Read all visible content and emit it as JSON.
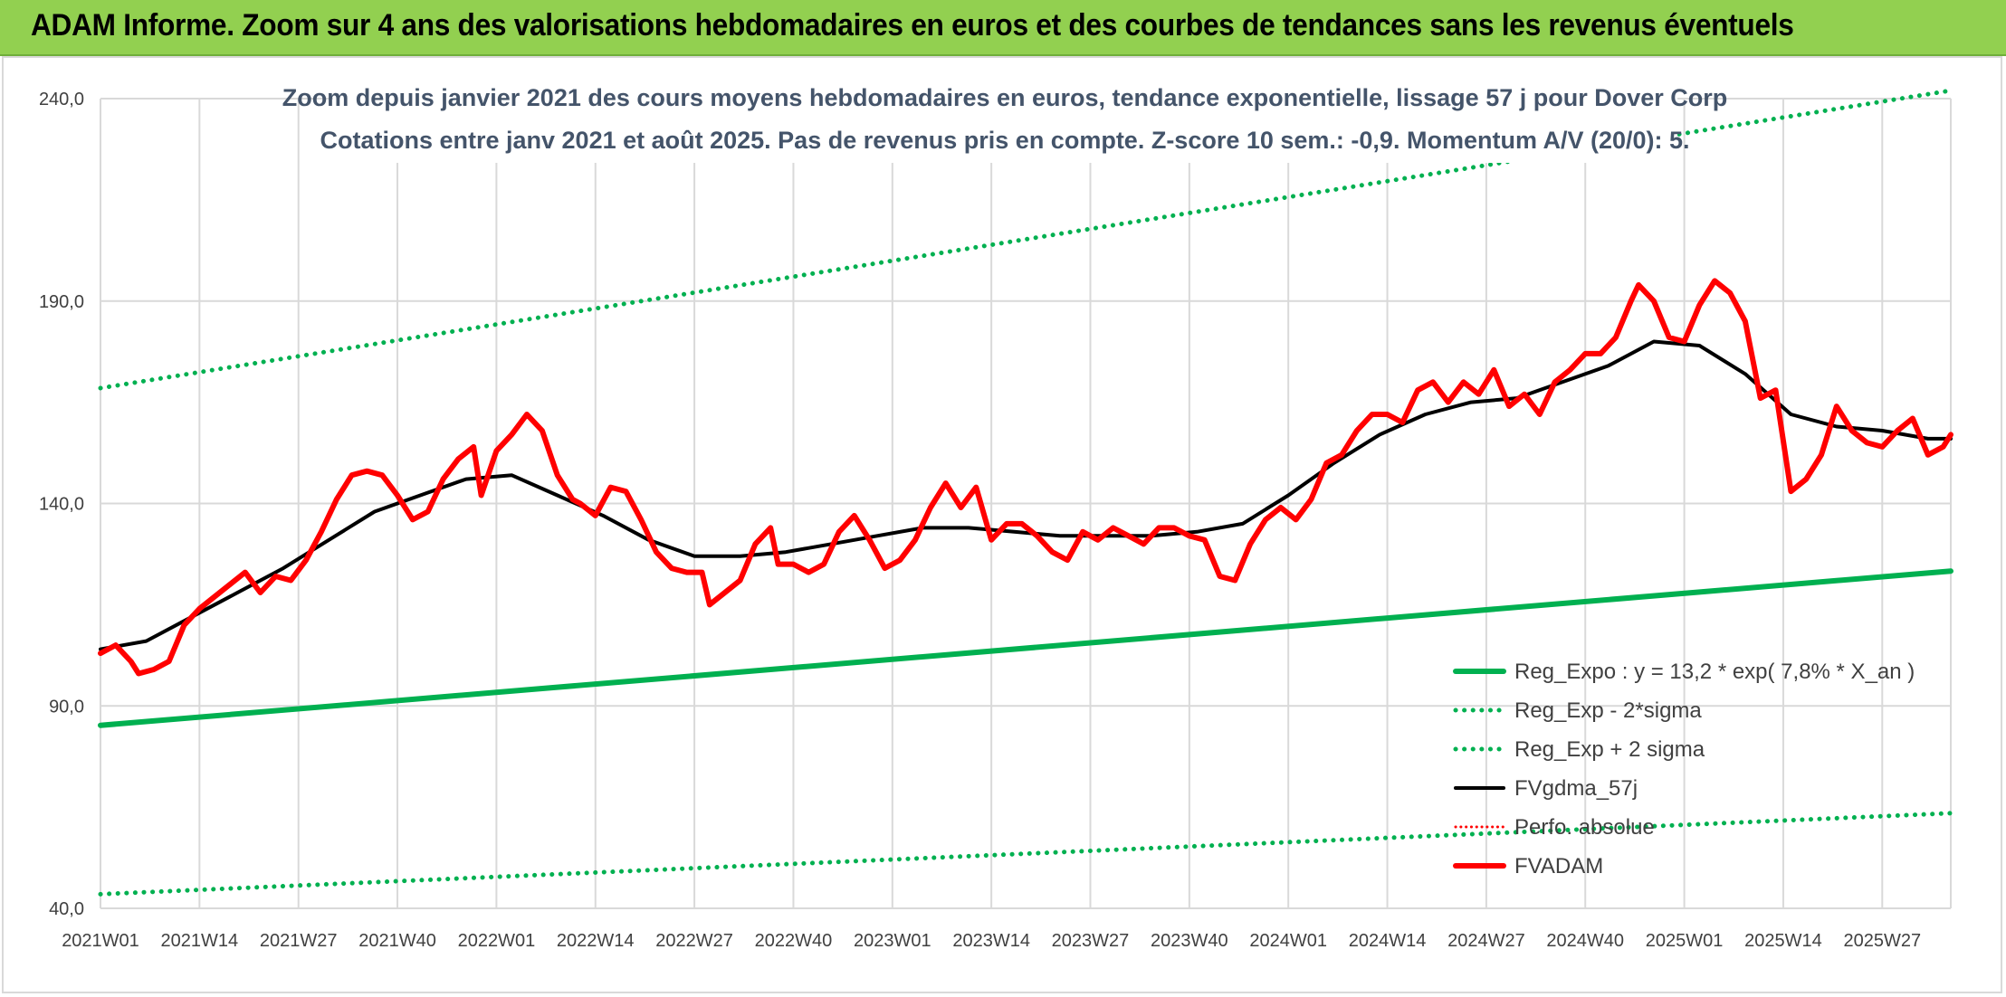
{
  "header": {
    "title": "ADAM Informe. Zoom sur 4 ans des valorisations hebdomadaires en euros et des courbes de tendances sans les revenus éventuels"
  },
  "chart_data": {
    "type": "line",
    "subtitle_lines": [
      "Zoom depuis janvier 2021 des cours moyens hebdomadaires en euros, tendance exponentielle, lissage 57 j pour Dover Corp",
      "Cotations entre janv 2021 et août 2025. Pas de revenus pris en compte. Z-score 10 sem.: -0,9. Momentum A/V (20/0): 5."
    ],
    "ylim": [
      40,
      240
    ],
    "y_ticks": [
      40,
      90,
      140,
      190,
      240
    ],
    "y_tick_labels": [
      "40,0",
      "90,0",
      "140,0",
      "190,0",
      "240,0"
    ],
    "x_tick_labels": [
      "2021W01",
      "2021W14",
      "2021W27",
      "2021W40",
      "2022W01",
      "2022W14",
      "2022W27",
      "2022W40",
      "2023W01",
      "2023W14",
      "2023W27",
      "2023W40",
      "2024W01",
      "2024W14",
      "2024W27",
      "2024W40",
      "2025W01",
      "2025W14",
      "2025W27"
    ],
    "x_tick_index": [
      0,
      13,
      26,
      39,
      52,
      65,
      78,
      91,
      104,
      117,
      130,
      143,
      156,
      169,
      182,
      195,
      208,
      221,
      234
    ],
    "x_count": 244,
    "grid": true,
    "legend_position": "right",
    "series": [
      {
        "name": "Reg_Expo : y = 13,2 * exp( 7,8% *  X_an )",
        "color": "#00b050",
        "style": "solid",
        "width": 6,
        "kind": "line",
        "start": 85.2,
        "end": 123.3
      },
      {
        "name": "Reg_Exp - 2*sigma",
        "color": "#00b050",
        "style": "dotted",
        "width": 5,
        "kind": "line",
        "start": 43.5,
        "end": 63.5
      },
      {
        "name": "Reg_Exp + 2 sigma",
        "color": "#00b050",
        "style": "dotted",
        "width": 5,
        "kind": "line",
        "start": 168.5,
        "end": 242.0
      },
      {
        "name": "FVgdma_57j",
        "color": "#000000",
        "style": "solid",
        "width": 4,
        "kind": "points",
        "points": [
          [
            0,
            104
          ],
          [
            6,
            106
          ],
          [
            12,
            112
          ],
          [
            18,
            118
          ],
          [
            24,
            124
          ],
          [
            30,
            131
          ],
          [
            36,
            138
          ],
          [
            42,
            142
          ],
          [
            48,
            146
          ],
          [
            54,
            147
          ],
          [
            60,
            142
          ],
          [
            66,
            137
          ],
          [
            72,
            131
          ],
          [
            78,
            127
          ],
          [
            84,
            127
          ],
          [
            90,
            128
          ],
          [
            96,
            130
          ],
          [
            102,
            132
          ],
          [
            108,
            134
          ],
          [
            114,
            134
          ],
          [
            120,
            133
          ],
          [
            126,
            132
          ],
          [
            132,
            132
          ],
          [
            138,
            132
          ],
          [
            144,
            133
          ],
          [
            150,
            135
          ],
          [
            156,
            142
          ],
          [
            162,
            150
          ],
          [
            168,
            157
          ],
          [
            174,
            162
          ],
          [
            180,
            165
          ],
          [
            186,
            166
          ],
          [
            192,
            170
          ],
          [
            198,
            174
          ],
          [
            204,
            180
          ],
          [
            210,
            179
          ],
          [
            216,
            172
          ],
          [
            222,
            162
          ],
          [
            228,
            159
          ],
          [
            234,
            158
          ],
          [
            240,
            156
          ],
          [
            243,
            156
          ]
        ]
      },
      {
        "name": "Perfo. absolue",
        "color": "#ff0000",
        "style": "dotted",
        "width": 3,
        "kind": "none"
      },
      {
        "name": "FVADAM",
        "color": "#ff0000",
        "style": "solid",
        "width": 6,
        "kind": "points",
        "points": [
          [
            0,
            103
          ],
          [
            2,
            105
          ],
          [
            4,
            101
          ],
          [
            5,
            98
          ],
          [
            7,
            99
          ],
          [
            9,
            101
          ],
          [
            11,
            110
          ],
          [
            13,
            114
          ],
          [
            15,
            117
          ],
          [
            17,
            120
          ],
          [
            19,
            123
          ],
          [
            21,
            118
          ],
          [
            23,
            122
          ],
          [
            25,
            121
          ],
          [
            27,
            126
          ],
          [
            29,
            133
          ],
          [
            31,
            141
          ],
          [
            33,
            147
          ],
          [
            35,
            148
          ],
          [
            37,
            147
          ],
          [
            39,
            142
          ],
          [
            41,
            136
          ],
          [
            43,
            138
          ],
          [
            45,
            146
          ],
          [
            47,
            151
          ],
          [
            49,
            154
          ],
          [
            50,
            142
          ],
          [
            52,
            153
          ],
          [
            54,
            157
          ],
          [
            56,
            162
          ],
          [
            58,
            158
          ],
          [
            60,
            147
          ],
          [
            62,
            141
          ],
          [
            63,
            140
          ],
          [
            65,
            137
          ],
          [
            67,
            144
          ],
          [
            69,
            143
          ],
          [
            71,
            136
          ],
          [
            73,
            128
          ],
          [
            75,
            124
          ],
          [
            77,
            123
          ],
          [
            79,
            123
          ],
          [
            80,
            115
          ],
          [
            82,
            118
          ],
          [
            84,
            121
          ],
          [
            86,
            130
          ],
          [
            88,
            134
          ],
          [
            89,
            125
          ],
          [
            91,
            125
          ],
          [
            93,
            123
          ],
          [
            95,
            125
          ],
          [
            97,
            133
          ],
          [
            99,
            137
          ],
          [
            101,
            131
          ],
          [
            103,
            124
          ],
          [
            105,
            126
          ],
          [
            107,
            131
          ],
          [
            109,
            139
          ],
          [
            111,
            145
          ],
          [
            113,
            139
          ],
          [
            115,
            144
          ],
          [
            117,
            131
          ],
          [
            119,
            135
          ],
          [
            121,
            135
          ],
          [
            123,
            132
          ],
          [
            125,
            128
          ],
          [
            127,
            126
          ],
          [
            129,
            133
          ],
          [
            131,
            131
          ],
          [
            133,
            134
          ],
          [
            135,
            132
          ],
          [
            137,
            130
          ],
          [
            139,
            134
          ],
          [
            141,
            134
          ],
          [
            143,
            132
          ],
          [
            145,
            131
          ],
          [
            147,
            122
          ],
          [
            149,
            121
          ],
          [
            151,
            130
          ],
          [
            153,
            136
          ],
          [
            155,
            139
          ],
          [
            157,
            136
          ],
          [
            159,
            141
          ],
          [
            161,
            150
          ],
          [
            163,
            152
          ],
          [
            165,
            158
          ],
          [
            167,
            162
          ],
          [
            169,
            162
          ],
          [
            171,
            160
          ],
          [
            173,
            168
          ],
          [
            175,
            170
          ],
          [
            177,
            165
          ],
          [
            179,
            170
          ],
          [
            181,
            167
          ],
          [
            183,
            173
          ],
          [
            185,
            164
          ],
          [
            187,
            167
          ],
          [
            189,
            162
          ],
          [
            191,
            170
          ],
          [
            193,
            173
          ],
          [
            195,
            177
          ],
          [
            197,
            177
          ],
          [
            199,
            181
          ],
          [
            201,
            190
          ],
          [
            202,
            194
          ],
          [
            204,
            190
          ],
          [
            206,
            181
          ],
          [
            208,
            180
          ],
          [
            210,
            189
          ],
          [
            212,
            195
          ],
          [
            214,
            192
          ],
          [
            216,
            185
          ],
          [
            218,
            166
          ],
          [
            220,
            168
          ],
          [
            222,
            143
          ],
          [
            224,
            146
          ],
          [
            226,
            152
          ],
          [
            228,
            164
          ],
          [
            230,
            158
          ],
          [
            232,
            155
          ],
          [
            234,
            154
          ],
          [
            236,
            158
          ],
          [
            238,
            161
          ],
          [
            240,
            152
          ],
          [
            242,
            154
          ],
          [
            243,
            157
          ]
        ]
      }
    ]
  }
}
